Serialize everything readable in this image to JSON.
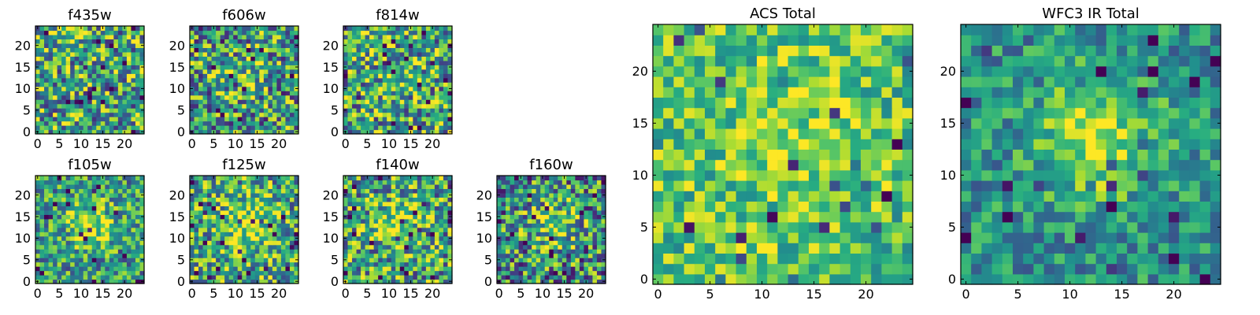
{
  "chart_data": [
    {
      "type": "heatmap",
      "title": "f435w",
      "xticks": [
        "0",
        "5",
        "10",
        "15",
        "20"
      ],
      "yticks": [
        "0",
        "5",
        "10",
        "15",
        "20"
      ],
      "xlim": [
        -0.5,
        24.5
      ],
      "ylim": [
        -0.5,
        24.5
      ],
      "grid_size": 25,
      "colormap": "viridis",
      "pattern": {
        "seed": 11,
        "peak": 0.0,
        "noise": 0.9,
        "base": 0.6
      }
    },
    {
      "type": "heatmap",
      "title": "f606w",
      "xticks": [
        "0",
        "5",
        "10",
        "15",
        "20"
      ],
      "yticks": [
        "0",
        "5",
        "10",
        "15",
        "20"
      ],
      "xlim": [
        -0.5,
        24.5
      ],
      "ylim": [
        -0.5,
        24.5
      ],
      "grid_size": 25,
      "colormap": "viridis",
      "pattern": {
        "seed": 23,
        "peak": 0.15,
        "noise": 0.9,
        "base": 0.55
      }
    },
    {
      "type": "heatmap",
      "title": "f814w",
      "xticks": [
        "0",
        "5",
        "10",
        "15",
        "20"
      ],
      "yticks": [
        "0",
        "5",
        "10",
        "15",
        "20"
      ],
      "xlim": [
        -0.5,
        24.5
      ],
      "ylim": [
        -0.5,
        24.5
      ],
      "grid_size": 25,
      "colormap": "viridis",
      "pattern": {
        "seed": 37,
        "peak": 0.1,
        "noise": 0.9,
        "base": 0.6
      }
    },
    {
      "type": "heatmap",
      "title": "f105w",
      "xticks": [
        "0",
        "5",
        "10",
        "15",
        "20"
      ],
      "yticks": [
        "0",
        "5",
        "10",
        "15",
        "20"
      ],
      "xlim": [
        -0.5,
        24.5
      ],
      "ylim": [
        -0.5,
        24.5
      ],
      "grid_size": 25,
      "colormap": "viridis",
      "pattern": {
        "seed": 41,
        "peak": 0.35,
        "noise": 0.7,
        "base": 0.55
      }
    },
    {
      "type": "heatmap",
      "title": "f125w",
      "xticks": [
        "0",
        "5",
        "10",
        "15",
        "20"
      ],
      "yticks": [
        "0",
        "5",
        "10",
        "15",
        "20"
      ],
      "xlim": [
        -0.5,
        24.5
      ],
      "ylim": [
        -0.5,
        24.5
      ],
      "grid_size": 25,
      "colormap": "viridis",
      "pattern": {
        "seed": 53,
        "peak": 0.35,
        "noise": 0.8,
        "base": 0.6
      }
    },
    {
      "type": "heatmap",
      "title": "f140w",
      "xticks": [
        "0",
        "5",
        "10",
        "15",
        "20"
      ],
      "yticks": [
        "0",
        "5",
        "10",
        "15",
        "20"
      ],
      "xlim": [
        -0.5,
        24.5
      ],
      "ylim": [
        -0.5,
        24.5
      ],
      "grid_size": 25,
      "colormap": "viridis",
      "pattern": {
        "seed": 67,
        "peak": 0.3,
        "noise": 0.85,
        "base": 0.58
      }
    },
    {
      "type": "heatmap",
      "title": "f160w",
      "xticks": [
        "0",
        "5",
        "10",
        "15",
        "20"
      ],
      "yticks": [
        "0",
        "5",
        "10",
        "15",
        "20"
      ],
      "xlim": [
        -0.5,
        24.5
      ],
      "ylim": [
        -0.5,
        24.5
      ],
      "grid_size": 25,
      "colormap": "viridis",
      "pattern": {
        "seed": 79,
        "peak": 0.3,
        "noise": 0.9,
        "base": 0.5
      }
    },
    {
      "type": "heatmap",
      "title": "ACS Total",
      "xticks": [
        "0",
        "5",
        "10",
        "15",
        "20"
      ],
      "yticks": [
        "0",
        "5",
        "10",
        "15",
        "20"
      ],
      "xlim": [
        -0.5,
        24.5
      ],
      "ylim": [
        -0.5,
        24.5
      ],
      "grid_size": 25,
      "colormap": "viridis",
      "pattern": {
        "seed": 97,
        "peak": 0.2,
        "noise": 0.55,
        "base": 0.72
      }
    },
    {
      "type": "heatmap",
      "title": "WFC3 IR Total",
      "xticks": [
        "0",
        "5",
        "10",
        "15",
        "20"
      ],
      "yticks": [
        "0",
        "5",
        "10",
        "15",
        "20"
      ],
      "xlim": [
        -0.5,
        24.5
      ],
      "ylim": [
        -0.5,
        24.5
      ],
      "grid_size": 25,
      "colormap": "viridis",
      "pattern": {
        "seed": 113,
        "peak": 0.45,
        "noise": 0.5,
        "base": 0.5
      }
    }
  ]
}
